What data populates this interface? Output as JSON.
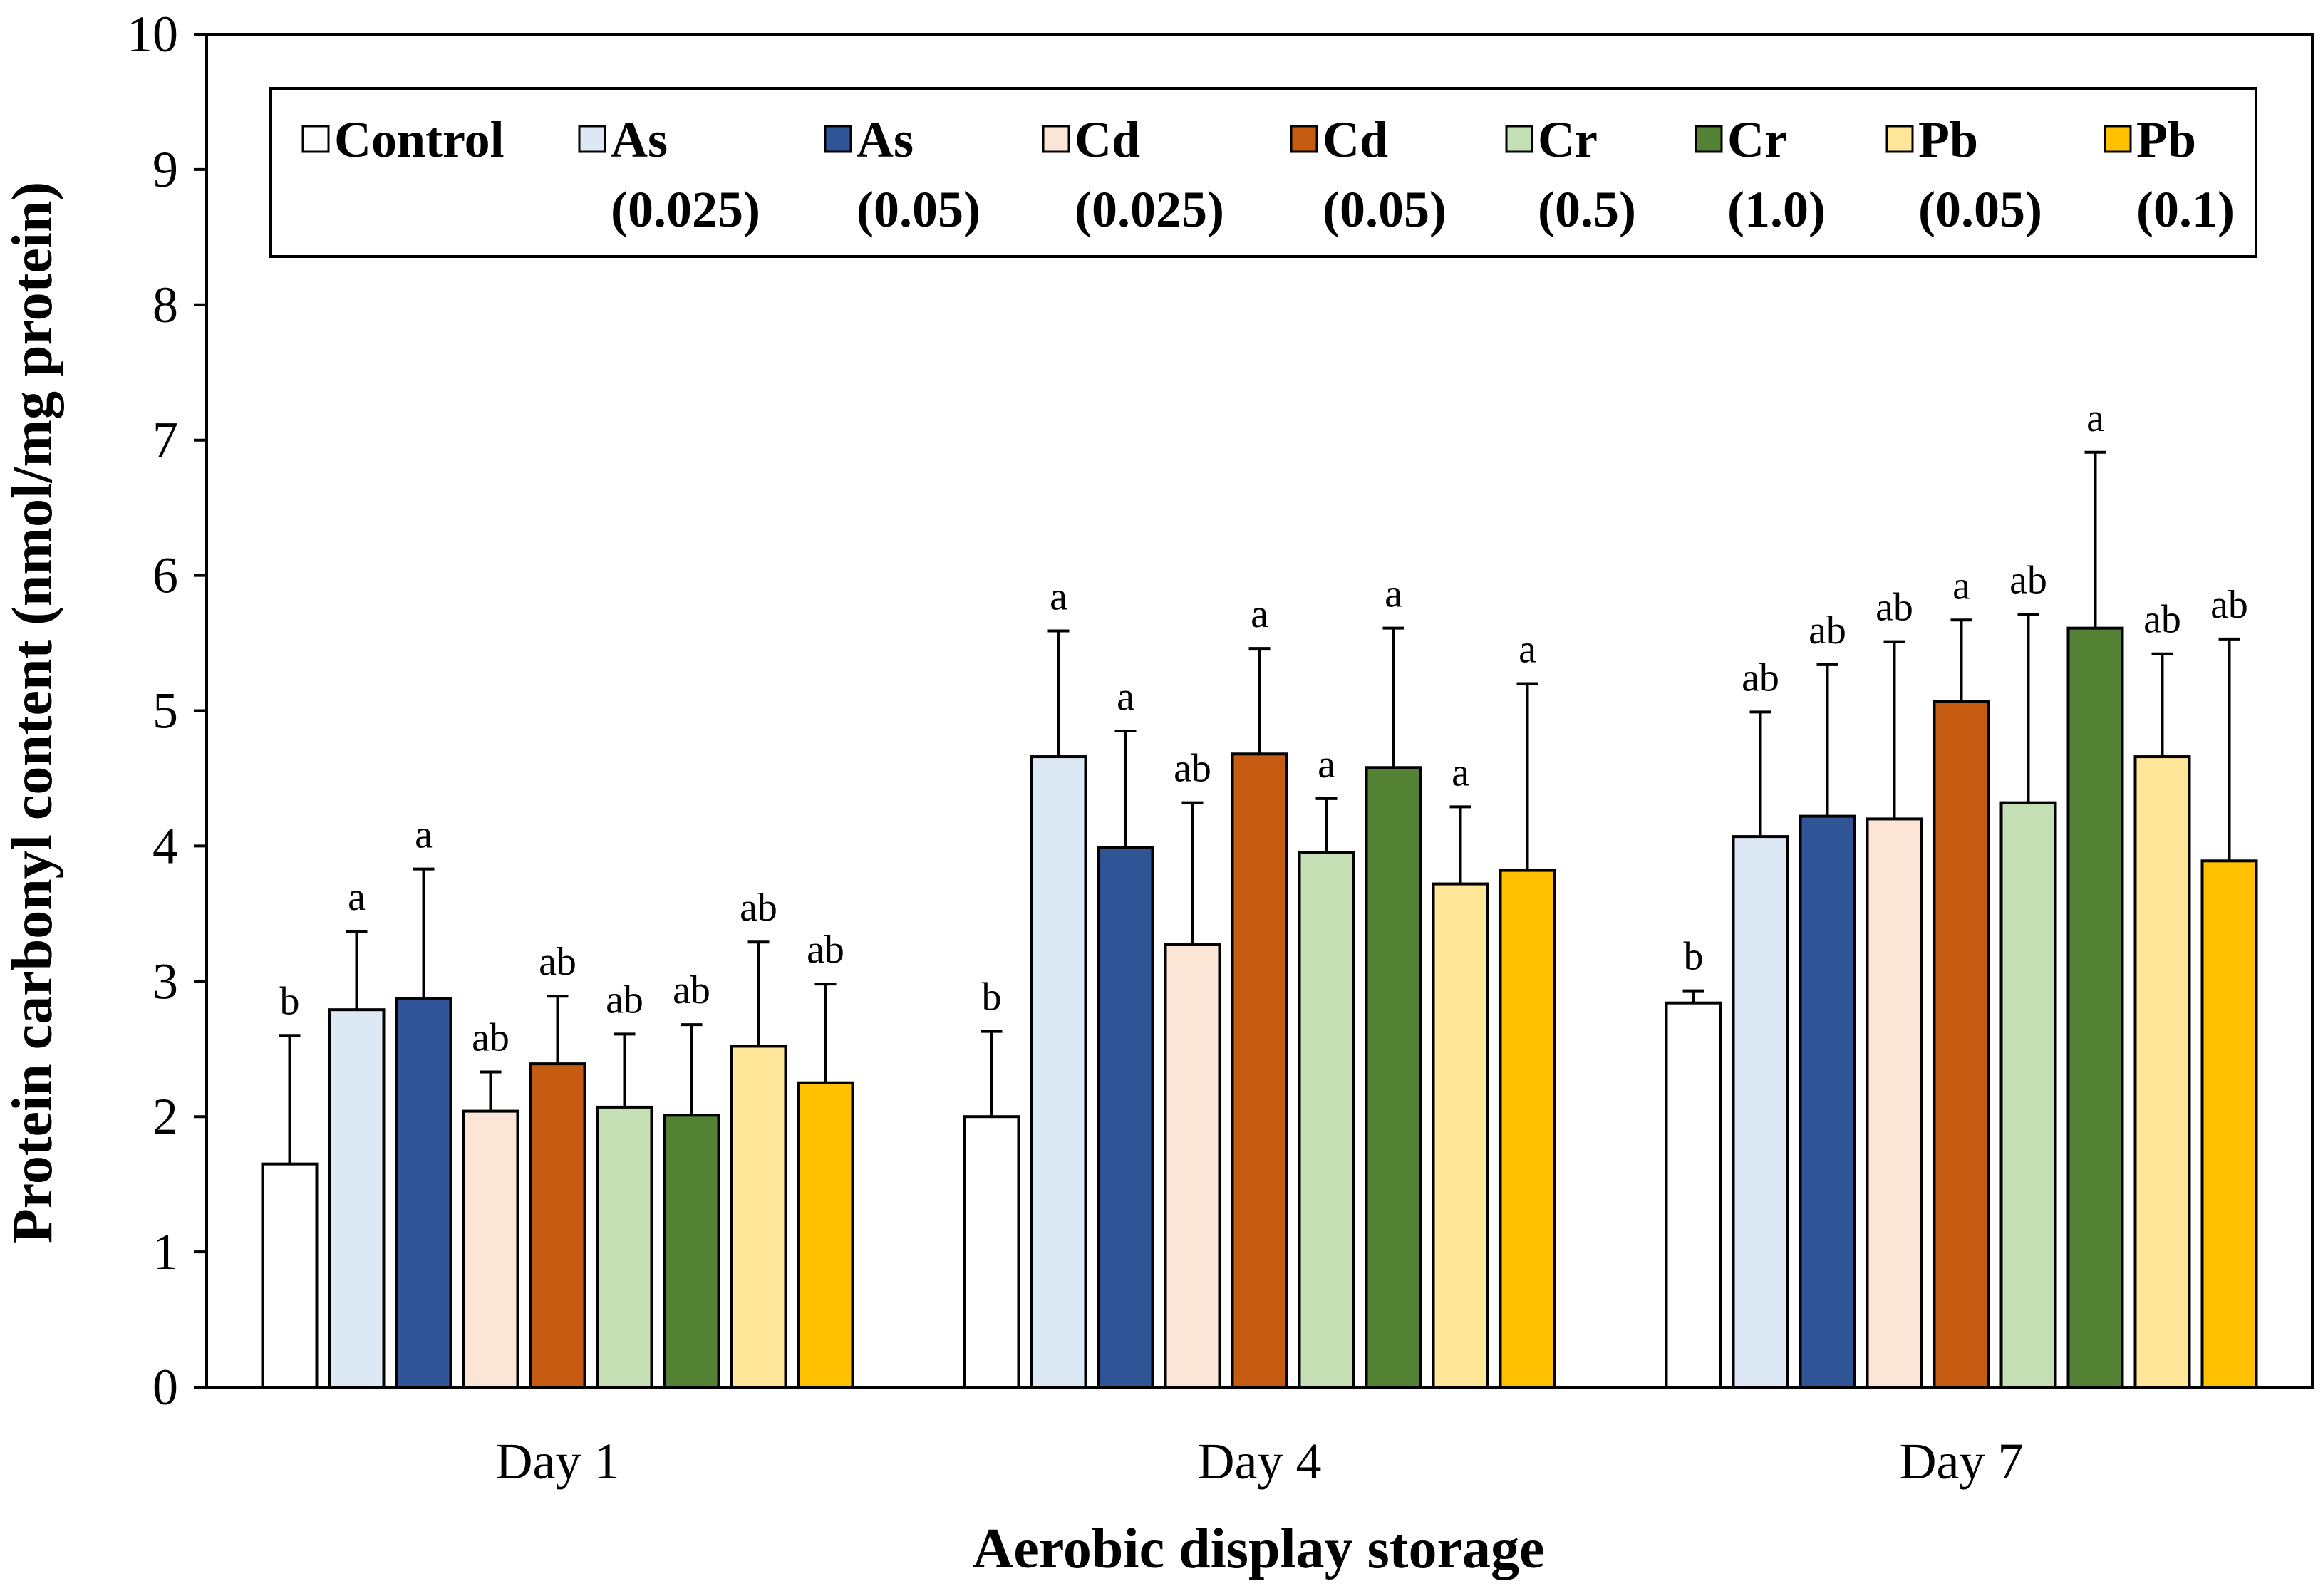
{
  "chart_data": {
    "type": "bar",
    "title": "",
    "xlabel": "Aerobic display storage",
    "ylabel": "Protein carbonyl content (nmol/mg protein)",
    "ylim": [
      0,
      10
    ],
    "yticks": [
      "0",
      "1",
      "2",
      "3",
      "4",
      "5",
      "6",
      "7",
      "8",
      "9",
      "10"
    ],
    "categories": [
      "Day 1",
      "Day 4",
      "Day 7"
    ],
    "legend_placement": "top",
    "series": [
      {
        "name": "Control",
        "name_line2": "",
        "color": "#ffffff",
        "values": [
          1.65,
          2.0,
          2.84
        ],
        "errors": [
          0.95,
          0.63,
          0.09
        ],
        "letters": [
          "b",
          "b",
          "b"
        ]
      },
      {
        "name": "As",
        "name_line2": "(0.025)",
        "color": "#dce9f5",
        "values": [
          2.79,
          4.66,
          4.07
        ],
        "errors": [
          0.58,
          0.93,
          0.92
        ],
        "letters": [
          "a",
          "a",
          "ab"
        ]
      },
      {
        "name": "As",
        "name_line2": "(0.05)",
        "color": "#2f5597",
        "values": [
          2.87,
          3.99,
          4.22
        ],
        "errors": [
          0.96,
          0.86,
          1.12
        ],
        "letters": [
          "a",
          "a",
          "ab"
        ]
      },
      {
        "name": "Cd",
        "name_line2": "(0.025)",
        "color": "#fbe5d6",
        "values": [
          2.04,
          3.27,
          4.2
        ],
        "errors": [
          0.29,
          1.05,
          1.31
        ],
        "letters": [
          "ab",
          "ab",
          "ab"
        ]
      },
      {
        "name": "Cd",
        "name_line2": "(0.05)",
        "color": "#c55a11",
        "values": [
          2.39,
          4.68,
          5.07
        ],
        "errors": [
          0.5,
          0.78,
          0.6
        ],
        "letters": [
          "ab",
          "a",
          "a"
        ]
      },
      {
        "name": "Cr",
        "name_line2": "(0.5)",
        "color": "#c5e0b4",
        "values": [
          2.07,
          3.95,
          4.32
        ],
        "errors": [
          0.54,
          0.4,
          1.39
        ],
        "letters": [
          "ab",
          "a",
          "ab"
        ]
      },
      {
        "name": "Cr",
        "name_line2": "(1.0)",
        "color": "#548235",
        "values": [
          2.01,
          4.58,
          5.61
        ],
        "errors": [
          0.67,
          1.03,
          1.3
        ],
        "letters": [
          "ab",
          "a",
          "a"
        ]
      },
      {
        "name": "Pb",
        "name_line2": "(0.05)",
        "color": "#ffe699",
        "values": [
          2.52,
          3.72,
          4.66
        ],
        "errors": [
          0.77,
          0.57,
          0.76
        ],
        "letters": [
          "ab",
          "a",
          "ab"
        ]
      },
      {
        "name": "Pb",
        "name_line2": "(0.1)",
        "color": "#ffc000",
        "values": [
          2.25,
          3.82,
          3.89
        ],
        "errors": [
          0.73,
          1.38,
          1.64
        ],
        "letters": [
          "ab",
          "a",
          "ab"
        ]
      }
    ]
  }
}
